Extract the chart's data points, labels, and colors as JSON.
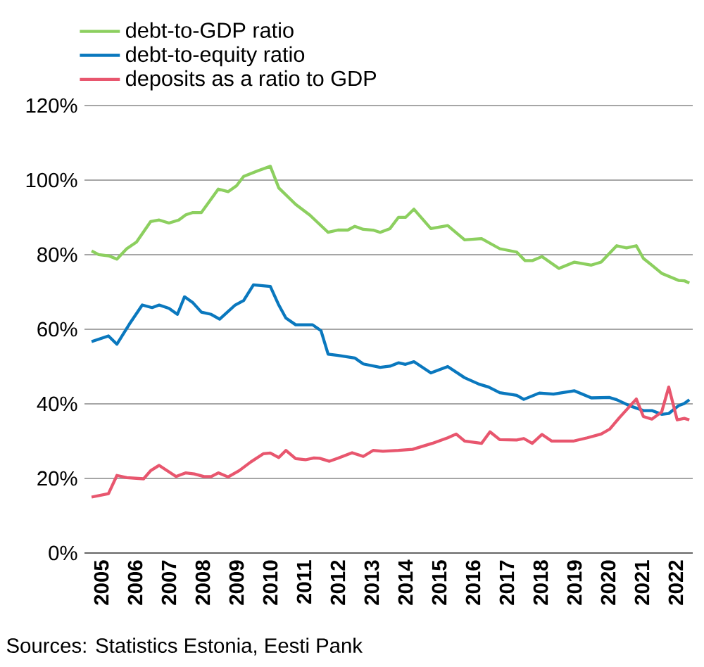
{
  "chart_data": {
    "type": "line",
    "legend": "top left",
    "grid": "y",
    "line_style": "solid",
    "marker": "none",
    "xlim": [
      2005,
      2023
    ],
    "ylim": [
      0,
      120
    ],
    "xticks": [
      {
        "value": 2005.5,
        "label": "2005"
      },
      {
        "value": 2006.5,
        "label": "2006"
      },
      {
        "value": 2007.5,
        "label": "2007"
      },
      {
        "value": 2008.5,
        "label": "2008"
      },
      {
        "value": 2009.5,
        "label": "2009"
      },
      {
        "value": 2010.5,
        "label": "2010"
      },
      {
        "value": 2011.5,
        "label": "2011"
      },
      {
        "value": 2012.5,
        "label": "2012"
      },
      {
        "value": 2013.5,
        "label": "2013"
      },
      {
        "value": 2014.5,
        "label": "2014"
      },
      {
        "value": 2015.5,
        "label": "2015"
      },
      {
        "value": 2016.5,
        "label": "2016"
      },
      {
        "value": 2017.5,
        "label": "2017"
      },
      {
        "value": 2018.5,
        "label": "2018"
      },
      {
        "value": 2019.5,
        "label": "2019"
      },
      {
        "value": 2020.5,
        "label": "2020"
      },
      {
        "value": 2021.5,
        "label": "2021"
      },
      {
        "value": 2022.5,
        "label": "2022"
      }
    ],
    "yticks": [
      {
        "value": 0,
        "label": "0%"
      },
      {
        "value": 20,
        "label": "20%"
      },
      {
        "value": 40,
        "label": "40%"
      },
      {
        "value": 60,
        "label": "60%"
      },
      {
        "value": 80,
        "label": "80%"
      },
      {
        "value": 100,
        "label": "100%"
      },
      {
        "value": 120,
        "label": "120%"
      }
    ],
    "series": [
      {
        "name": "debt-to-GDP ratio",
        "color": "#8ccf5f",
        "x": [
          2005.21,
          2005.42,
          2005.71,
          2005.96,
          2006.25,
          2006.54,
          2006.96,
          2007.21,
          2007.5,
          2007.79,
          2008.0,
          2008.21,
          2008.46,
          2008.96,
          2009.25,
          2009.5,
          2009.71,
          2010.13,
          2010.5,
          2010.75,
          2011.25,
          2011.67,
          2012.21,
          2012.5,
          2012.79,
          2013.0,
          2013.25,
          2013.54,
          2013.75,
          2014.04,
          2014.29,
          2014.5,
          2014.75,
          2015.25,
          2015.75,
          2016.25,
          2016.75,
          2017.29,
          2017.79,
          2018.04,
          2018.25,
          2018.54,
          2019.04,
          2019.5,
          2020.0,
          2020.29,
          2020.75,
          2021.04,
          2021.33,
          2021.54,
          2021.79,
          2022.08,
          2022.58,
          2022.75,
          2022.9
        ],
        "values": [
          81,
          80,
          79.7,
          78.8,
          81.6,
          83.4,
          88.9,
          89.3,
          88.5,
          89.3,
          90.7,
          91.3,
          91.3,
          97.6,
          96.9,
          98.5,
          101,
          102.5,
          103.7,
          97.9,
          93.5,
          90.6,
          86,
          86.6,
          86.6,
          87.6,
          86.8,
          86.6,
          86,
          87,
          90,
          90,
          92.2,
          87,
          87.8,
          84,
          84.3,
          81.6,
          80.7,
          78.4,
          78.4,
          79.5,
          76.3,
          78,
          77.2,
          78,
          82.4,
          81.8,
          82.4,
          79,
          77.2,
          75,
          73.1,
          73,
          72.4
        ]
      },
      {
        "name": "debt-to-equity ratio",
        "color": "#0a78be",
        "x": [
          2005.21,
          2005.71,
          2005.96,
          2006.33,
          2006.71,
          2007.0,
          2007.21,
          2007.5,
          2007.75,
          2007.96,
          2008.21,
          2008.46,
          2008.75,
          2009.0,
          2009.46,
          2009.71,
          2010.0,
          2010.5,
          2010.75,
          2010.96,
          2011.25,
          2011.75,
          2012.0,
          2012.21,
          2012.5,
          2013.0,
          2013.25,
          2013.75,
          2014.04,
          2014.29,
          2014.5,
          2014.75,
          2015.25,
          2015.75,
          2016.25,
          2016.67,
          2016.96,
          2017.29,
          2017.79,
          2018.0,
          2018.46,
          2018.88,
          2019.5,
          2020.0,
          2020.54,
          2020.75,
          2021.13,
          2021.54,
          2021.79,
          2022.08,
          2022.29,
          2022.58,
          2022.75,
          2022.9
        ],
        "values": [
          56.7,
          58.2,
          56,
          61.4,
          66.5,
          65.8,
          66.5,
          65.6,
          64,
          68.7,
          67.1,
          64.6,
          64,
          62.7,
          66.5,
          67.7,
          71.9,
          71.5,
          66.5,
          63,
          61.2,
          61.2,
          59.6,
          53.3,
          53,
          52.3,
          50.7,
          49.8,
          50.1,
          51,
          50.6,
          51.3,
          48.3,
          50,
          47,
          45.3,
          44.5,
          43,
          42.3,
          41.2,
          42.9,
          42.6,
          43.5,
          41.6,
          41.7,
          41.1,
          39.5,
          38.2,
          38.2,
          37.2,
          37.4,
          39.5,
          40.1,
          41.1
        ]
      },
      {
        "name": "deposits as a ratio to GDP",
        "color": "#e8566e",
        "x": [
          2005.21,
          2005.71,
          2005.96,
          2006.25,
          2006.75,
          2006.96,
          2007.21,
          2007.71,
          2008.0,
          2008.25,
          2008.54,
          2008.75,
          2008.96,
          2009.25,
          2009.58,
          2009.92,
          2010.29,
          2010.5,
          2010.75,
          2010.96,
          2011.25,
          2011.54,
          2011.79,
          2011.96,
          2012.25,
          2012.5,
          2012.92,
          2013.25,
          2013.54,
          2013.83,
          2014.29,
          2014.71,
          2015.29,
          2015.75,
          2016.0,
          2016.25,
          2016.75,
          2017.0,
          2017.29,
          2017.79,
          2018.0,
          2018.25,
          2018.54,
          2018.83,
          2019.46,
          2019.88,
          2020.29,
          2020.54,
          2020.83,
          2021.33,
          2021.54,
          2021.79,
          2022.08,
          2022.29,
          2022.54,
          2022.75,
          2022.9
        ],
        "values": [
          15,
          15.9,
          20.8,
          20.2,
          19.9,
          22.1,
          23.5,
          20.5,
          21.5,
          21.2,
          20.5,
          20.5,
          21.5,
          20.4,
          22.1,
          24.4,
          26.6,
          26.8,
          25.6,
          27.5,
          25.3,
          25,
          25.5,
          25.4,
          24.6,
          25.4,
          26.9,
          25.9,
          27.5,
          27.3,
          27.5,
          27.8,
          29.4,
          30.9,
          31.9,
          30,
          29.4,
          32.5,
          30.4,
          30.3,
          30.7,
          29.4,
          31.8,
          30,
          30,
          30.9,
          31.9,
          33.2,
          36.3,
          41.3,
          36.6,
          35.9,
          37.8,
          44.5,
          35.7,
          36.1,
          35.7
        ]
      }
    ],
    "annotations": [
      "Sources: Statistics Estonia, Eesti Pank"
    ]
  }
}
